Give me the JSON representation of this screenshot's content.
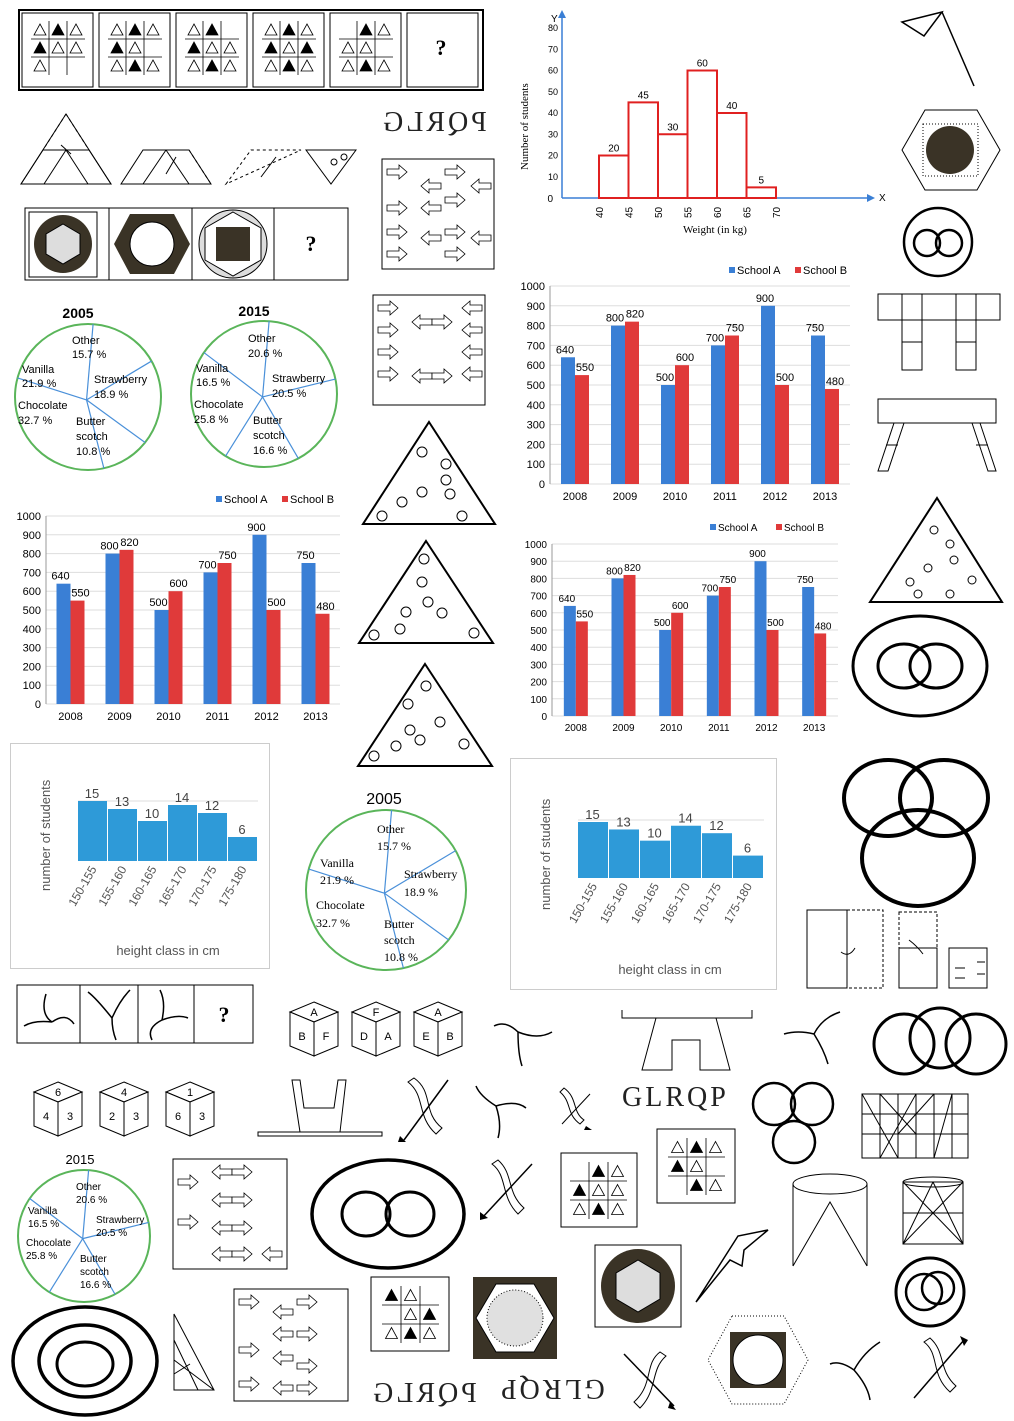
{
  "words": {
    "main": "GLRQP",
    "mirrored_a": "PQRLG",
    "mirrored_b": "GLRQP",
    "mirrored_c": "PQRLG"
  },
  "question_mark": "?",
  "histogram": {
    "y_axis_label": "Number of students",
    "x_axis_label": "Weight (in kg)",
    "y_axis_letter": "Y",
    "x_axis_letter": "X",
    "origin_label": "0"
  },
  "histogram_heights": {
    "y_axis_label": "number of students",
    "x_axis_label": "height class in cm"
  },
  "bar_legend": {
    "school_a": "School A",
    "school_b": "School B"
  },
  "pie_2005": {
    "year": "2005",
    "labels": [
      "Other",
      "15.7 %",
      "Vanilla",
      "21.9 %",
      "Strawberry",
      "18.9 %",
      "Chocolate",
      "32.7 %",
      "Butter",
      "scotch",
      "10.8 %"
    ]
  },
  "pie_2015": {
    "year": "2015",
    "labels": [
      "Other",
      "20.6 %",
      "Vanilla",
      "16.5 %",
      "Strawberry",
      "20.5 %",
      "Chocolate",
      "25.8 %",
      "Butter",
      "scotch",
      "16.6 %"
    ]
  },
  "dice": {
    "top_row": [
      [
        "A",
        "B",
        "F"
      ],
      [
        "F",
        "D",
        "A"
      ],
      [
        "A",
        "E",
        "B"
      ]
    ],
    "bottom_row": [
      [
        "6",
        "4",
        "3"
      ],
      [
        "4",
        "2",
        "3"
      ],
      [
        "1",
        "6",
        "3"
      ]
    ]
  },
  "chart_data": [
    {
      "type": "bar",
      "title": "",
      "xlabel": "Weight (in kg)",
      "ylabel": "Number of students",
      "categories": [
        "40-45",
        "45-50",
        "50-55",
        "55-60",
        "60-65",
        "65-70"
      ],
      "x_ticks": [
        "40",
        "45",
        "50",
        "55",
        "60",
        "65",
        "70"
      ],
      "y_ticks": [
        "0",
        "10",
        "20",
        "30",
        "40",
        "50",
        "60",
        "70",
        "80"
      ],
      "values": [
        20,
        45,
        30,
        60,
        40,
        5
      ],
      "ylim": [
        0,
        80
      ]
    },
    {
      "type": "bar",
      "title": "",
      "categories": [
        "2008",
        "2009",
        "2010",
        "2011",
        "2012",
        "2013"
      ],
      "y_ticks": [
        "0",
        "100",
        "200",
        "300",
        "400",
        "500",
        "600",
        "700",
        "800",
        "900",
        "1000"
      ],
      "ylim": [
        0,
        1000
      ],
      "series": [
        {
          "name": "School A",
          "color": "#3a7fd5",
          "values": [
            640,
            800,
            500,
            700,
            900,
            750
          ]
        },
        {
          "name": "School B",
          "color": "#e03a3a",
          "values": [
            550,
            820,
            600,
            750,
            500,
            480
          ]
        }
      ]
    },
    {
      "type": "bar",
      "title": "",
      "xlabel": "height class in cm",
      "ylabel": "number of students",
      "categories": [
        "150-155",
        "155-160",
        "160-165",
        "165-170",
        "170-175",
        "175-180"
      ],
      "values": [
        15,
        13,
        10,
        14,
        12,
        6
      ],
      "color": "#2e9ad8"
    },
    {
      "type": "pie",
      "title": "2005",
      "categories": [
        "Other",
        "Strawberry",
        "Butter scotch",
        "Chocolate",
        "Vanilla"
      ],
      "values": [
        15.7,
        18.9,
        10.8,
        32.7,
        21.9
      ]
    },
    {
      "type": "pie",
      "title": "2015",
      "categories": [
        "Other",
        "Strawberry",
        "Butter scotch",
        "Chocolate",
        "Vanilla"
      ],
      "values": [
        20.6,
        20.5,
        16.6,
        25.8,
        16.5
      ]
    }
  ],
  "colors": {
    "hist_red": "#e02020",
    "axis_blue": "#3a7fd5",
    "pie_green": "#5ab55a",
    "pie_lines": "#4a90d9",
    "dark_fill": "#3a3326",
    "bar_blue": "#2e9ad8"
  }
}
